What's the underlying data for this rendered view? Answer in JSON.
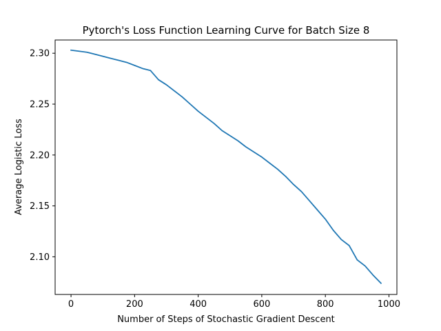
{
  "chart_data": {
    "type": "line",
    "title": "Pytorch's Loss Function Learning Curve for Batch Size 8",
    "xlabel": "Number of Steps of Stochastic Gradient Descent",
    "ylabel": "Average Logistic Loss",
    "xlim": [
      -50,
      1025
    ],
    "ylim": [
      2.063,
      2.313
    ],
    "xticks": [
      0,
      200,
      400,
      600,
      800,
      1000
    ],
    "xtick_labels": [
      "0",
      "200",
      "400",
      "600",
      "800",
      "1000"
    ],
    "yticks": [
      2.1,
      2.15,
      2.2,
      2.25,
      2.3
    ],
    "ytick_labels": [
      "2.10",
      "2.15",
      "2.20",
      "2.25",
      "2.30"
    ],
    "grid": false,
    "series_color": "#1f77b4",
    "x": [
      0,
      25,
      50,
      75,
      100,
      125,
      150,
      175,
      200,
      225,
      250,
      275,
      300,
      325,
      350,
      375,
      400,
      425,
      450,
      475,
      500,
      525,
      550,
      575,
      600,
      625,
      650,
      675,
      700,
      725,
      750,
      775,
      800,
      825,
      850,
      875,
      900,
      925,
      950,
      975
    ],
    "series": [
      {
        "values": [
          2.303,
          2.302,
          2.301,
          2.299,
          2.297,
          2.295,
          2.293,
          2.291,
          2.288,
          2.285,
          2.283,
          2.274,
          2.269,
          2.263,
          2.257,
          2.25,
          2.243,
          2.237,
          2.231,
          2.224,
          2.219,
          2.214,
          2.208,
          2.203,
          2.198,
          2.192,
          2.186,
          2.179,
          2.171,
          2.164,
          2.155,
          2.146,
          2.137,
          2.126,
          2.117,
          2.111,
          2.097,
          2.091,
          2.082,
          2.074
        ]
      }
    ]
  }
}
